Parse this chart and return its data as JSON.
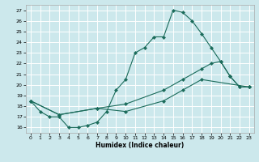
{
  "xlabel": "Humidex (Indice chaleur)",
  "bg_color": "#cce8ec",
  "grid_color": "#ffffff",
  "line_color": "#1a6b5a",
  "xlim": [
    -0.5,
    23.5
  ],
  "ylim": [
    15.5,
    27.5
  ],
  "xticks": [
    0,
    1,
    2,
    3,
    4,
    5,
    6,
    7,
    8,
    9,
    10,
    11,
    12,
    13,
    14,
    15,
    16,
    17,
    18,
    19,
    20,
    21,
    22,
    23
  ],
  "yticks": [
    16,
    17,
    18,
    19,
    20,
    21,
    22,
    23,
    24,
    25,
    26,
    27
  ],
  "line1_x": [
    0,
    1,
    2,
    3,
    4,
    5,
    6,
    7,
    8,
    9,
    10,
    11,
    12,
    13,
    14,
    15,
    16,
    17,
    18,
    19,
    20,
    21,
    22,
    23
  ],
  "line1_y": [
    18.5,
    17.5,
    17.0,
    17.0,
    16.0,
    16.0,
    16.2,
    16.5,
    17.5,
    19.5,
    20.5,
    23.0,
    23.5,
    24.5,
    24.5,
    27.0,
    26.8,
    26.0,
    24.8,
    23.5,
    22.2,
    20.8,
    19.8,
    19.8
  ],
  "line2_x": [
    0,
    3,
    7,
    10,
    14,
    16,
    18,
    19,
    20,
    21,
    22,
    23
  ],
  "line2_y": [
    18.5,
    17.2,
    17.8,
    18.2,
    19.5,
    20.5,
    21.5,
    22.0,
    22.2,
    20.8,
    19.8,
    19.8
  ],
  "line3_x": [
    0,
    3,
    7,
    10,
    14,
    16,
    18,
    23
  ],
  "line3_y": [
    18.5,
    17.2,
    17.8,
    17.5,
    18.5,
    19.5,
    20.5,
    19.8
  ]
}
